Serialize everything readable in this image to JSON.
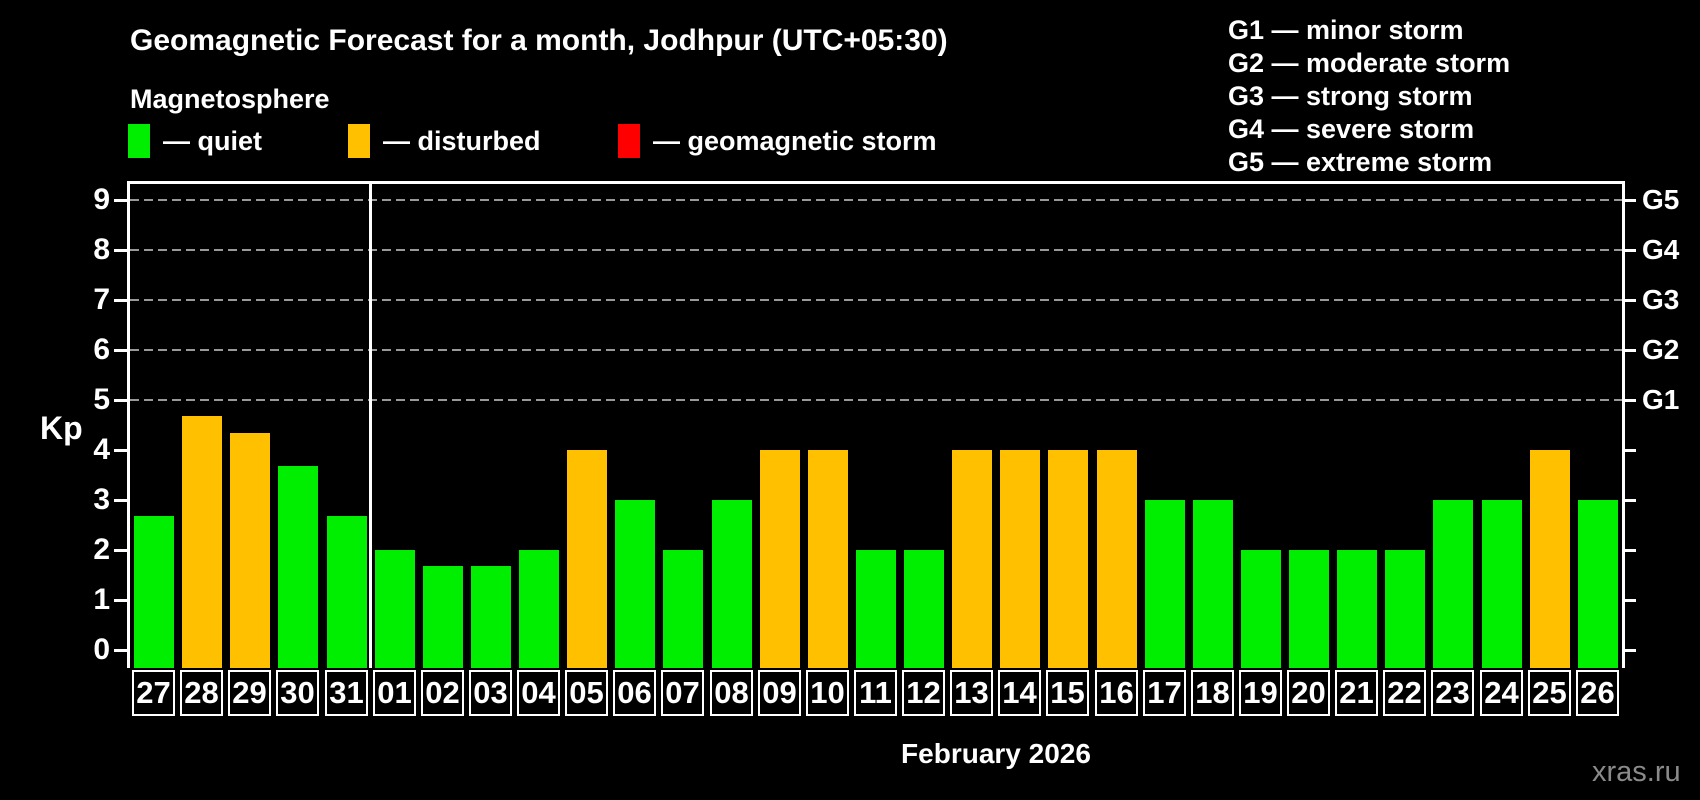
{
  "header": {
    "title": "Geomagnetic Forecast for a month, Jodhpur (UTC+05:30)",
    "subtitle": "Magnetosphere"
  },
  "legend": {
    "items": [
      {
        "key": "quiet",
        "label": "— quiet",
        "color": "#00ee00"
      },
      {
        "key": "disturbed",
        "label": "— disturbed",
        "color": "#ffc000"
      },
      {
        "key": "storm",
        "label": "— geomagnetic storm",
        "color": "#ff0000"
      }
    ]
  },
  "g_scale_legend": {
    "items": [
      "G1 — minor storm",
      "G2 — moderate storm",
      "G3 — strong storm",
      "G4 — severe storm",
      "G5 — extreme storm"
    ]
  },
  "chart_data": {
    "type": "bar",
    "title": "Geomagnetic Forecast for a month, Jodhpur (UTC+05:30)",
    "ylabel": "Kp",
    "xlabel": "February 2026",
    "ylim": [
      0,
      9.3
    ],
    "yticks": [
      0,
      1,
      2,
      3,
      4,
      5,
      6,
      7,
      8,
      9
    ],
    "gridlines_at": [
      5,
      6,
      7,
      8,
      9
    ],
    "grid": "dashed horizontal, upper half only",
    "legend_position": "top-left",
    "right_axis": [
      {
        "kp": 5,
        "label": "G1"
      },
      {
        "kp": 6,
        "label": "G2"
      },
      {
        "kp": 7,
        "label": "G3"
      },
      {
        "kp": 8,
        "label": "G4"
      },
      {
        "kp": 9,
        "label": "G5"
      }
    ],
    "month_separator_after_index": 4,
    "categories": [
      "27",
      "28",
      "29",
      "30",
      "31",
      "01",
      "02",
      "03",
      "04",
      "05",
      "06",
      "07",
      "08",
      "09",
      "10",
      "11",
      "12",
      "13",
      "14",
      "15",
      "16",
      "17",
      "18",
      "19",
      "20",
      "21",
      "22",
      "23",
      "24",
      "25",
      "26"
    ],
    "values": [
      2.67,
      4.67,
      4.33,
      3.67,
      2.67,
      2.0,
      1.67,
      1.67,
      2.0,
      4.0,
      3.0,
      2.0,
      3.0,
      4.0,
      4.0,
      2.0,
      2.0,
      4.0,
      4.0,
      4.0,
      4.0,
      3.0,
      3.0,
      2.0,
      2.0,
      2.0,
      2.0,
      3.0,
      3.0,
      4.0,
      3.0
    ],
    "status": [
      "quiet",
      "disturbed",
      "disturbed",
      "quiet",
      "quiet",
      "quiet",
      "quiet",
      "quiet",
      "quiet",
      "disturbed",
      "quiet",
      "quiet",
      "quiet",
      "disturbed",
      "disturbed",
      "quiet",
      "quiet",
      "disturbed",
      "disturbed",
      "disturbed",
      "disturbed",
      "quiet",
      "quiet",
      "quiet",
      "quiet",
      "quiet",
      "quiet",
      "quiet",
      "quiet",
      "disturbed",
      "quiet"
    ],
    "colors": {
      "quiet": "#00ee00",
      "disturbed": "#ffc000",
      "storm": "#ff0000",
      "gridline": "#999999",
      "axis": "#ffffff",
      "background": "#000000"
    }
  },
  "footer": {
    "watermark": "xras.ru"
  }
}
